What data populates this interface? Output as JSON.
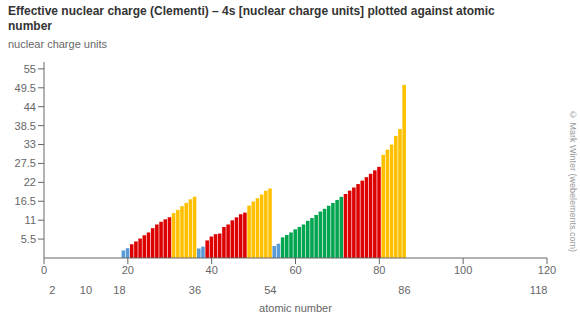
{
  "chart_data": {
    "type": "bar",
    "title": "Effective nuclear charge (Clementi) – 4s [nuclear charge units] plotted against atomic\nnumber",
    "ylabel": "nuclear charge units",
    "xlabel": "atomic number",
    "annotations": [
      "© Mark Winter (webelements.com)"
    ],
    "x": [
      19,
      20,
      21,
      22,
      23,
      24,
      25,
      26,
      27,
      28,
      29,
      30,
      31,
      32,
      33,
      34,
      35,
      36,
      37,
      38,
      39,
      40,
      41,
      42,
      43,
      44,
      45,
      46,
      47,
      48,
      49,
      50,
      51,
      52,
      53,
      54,
      55,
      56,
      57,
      58,
      59,
      60,
      61,
      62,
      63,
      64,
      65,
      66,
      67,
      68,
      69,
      70,
      71,
      72,
      73,
      74,
      75,
      76,
      77,
      78,
      79,
      80,
      81,
      82,
      83,
      84,
      85,
      86
    ],
    "values": [
      2.2,
      2.85,
      4.0,
      4.82,
      5.65,
      6.61,
      7.43,
      8.68,
      9.75,
      10.53,
      11.25,
      11.85,
      13.07,
      14.01,
      15.07,
      16.02,
      17.07,
      17.82,
      2.77,
      3.31,
      5.11,
      6.25,
      6.93,
      7.11,
      9.02,
      9.75,
      10.96,
      11.83,
      12.73,
      13.2,
      15.23,
      16.42,
      17.39,
      18.5,
      19.56,
      20.21,
      3.49,
      4.15,
      6.0,
      6.69,
      7.43,
      8.33,
      9.02,
      9.75,
      10.82,
      11.61,
      12.52,
      13.5,
      14.3,
      15.21,
      16.0,
      16.89,
      17.78,
      18.62,
      19.59,
      20.5,
      21.5,
      22.5,
      23.5,
      24.5,
      25.5,
      26.5,
      30.0,
      31.5,
      33.0,
      35.5,
      37.5,
      50.35
    ],
    "colors": [
      "#5b9bd5",
      "#5b9bd5",
      "#dd0000",
      "#dd0000",
      "#dd0000",
      "#dd0000",
      "#dd0000",
      "#dd0000",
      "#dd0000",
      "#dd0000",
      "#dd0000",
      "#dd0000",
      "#ffc000",
      "#ffc000",
      "#ffc000",
      "#ffc000",
      "#ffc000",
      "#ffc000",
      "#5b9bd5",
      "#5b9bd5",
      "#dd0000",
      "#dd0000",
      "#dd0000",
      "#dd0000",
      "#dd0000",
      "#dd0000",
      "#dd0000",
      "#dd0000",
      "#dd0000",
      "#dd0000",
      "#ffc000",
      "#ffc000",
      "#ffc000",
      "#ffc000",
      "#ffc000",
      "#ffc000",
      "#5b9bd5",
      "#5b9bd5",
      "#00a550",
      "#00a550",
      "#00a550",
      "#00a550",
      "#00a550",
      "#00a550",
      "#00a550",
      "#00a550",
      "#00a550",
      "#00a550",
      "#00a550",
      "#00a550",
      "#00a550",
      "#00a550",
      "#00a550",
      "#dd0000",
      "#dd0000",
      "#dd0000",
      "#dd0000",
      "#dd0000",
      "#dd0000",
      "#dd0000",
      "#dd0000",
      "#dd0000",
      "#ffc000",
      "#ffc000",
      "#ffc000",
      "#ffc000",
      "#ffc000",
      "#ffc000"
    ],
    "xlim": [
      0,
      120
    ],
    "xticks": [
      0,
      20,
      40,
      60,
      80,
      100,
      120
    ],
    "x2ticks": [
      2,
      10,
      18,
      36,
      54,
      86,
      118
    ],
    "ylim": [
      0,
      57
    ],
    "yticks": [
      5.5,
      11,
      16.5,
      22,
      27.5,
      33,
      38.5,
      44,
      49.5,
      55
    ],
    "grid": false
  }
}
